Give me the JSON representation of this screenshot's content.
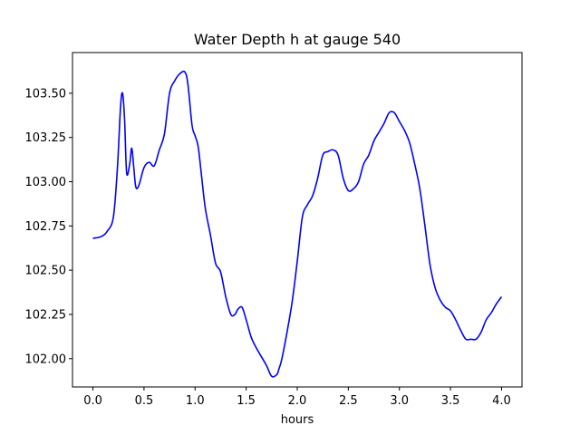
{
  "chart_data": {
    "type": "line",
    "title": "Water Depth h at gauge 540",
    "xlabel": "hours",
    "ylabel": "",
    "xlim": [
      -0.2,
      4.2
    ],
    "ylim": [
      101.84,
      103.73
    ],
    "xticks": [
      0.0,
      0.5,
      1.0,
      1.5,
      2.0,
      2.5,
      3.0,
      3.5,
      4.0
    ],
    "xtick_labels": [
      "0.0",
      "0.5",
      "1.0",
      "1.5",
      "2.0",
      "2.5",
      "3.0",
      "3.5",
      "4.0"
    ],
    "yticks": [
      102.0,
      102.25,
      102.5,
      102.75,
      103.0,
      103.25,
      103.5
    ],
    "ytick_labels": [
      "102.00",
      "102.25",
      "102.50",
      "102.75",
      "103.00",
      "103.25",
      "103.50"
    ],
    "grid": false,
    "series": [
      {
        "color": "#0000ff",
        "x": [
          0.0,
          0.08,
          0.14,
          0.2,
          0.24,
          0.27,
          0.29,
          0.31,
          0.33,
          0.36,
          0.38,
          0.4,
          0.42,
          0.45,
          0.5,
          0.55,
          0.6,
          0.65,
          0.7,
          0.75,
          0.8,
          0.85,
          0.9,
          0.93,
          0.97,
          1.0,
          1.03,
          1.06,
          1.1,
          1.15,
          1.2,
          1.25,
          1.3,
          1.35,
          1.39,
          1.42,
          1.46,
          1.5,
          1.55,
          1.6,
          1.65,
          1.7,
          1.75,
          1.8,
          1.82,
          1.85,
          1.9,
          1.95,
          2.0,
          2.05,
          2.1,
          2.15,
          2.2,
          2.25,
          2.3,
          2.35,
          2.4,
          2.45,
          2.5,
          2.55,
          2.6,
          2.65,
          2.7,
          2.75,
          2.8,
          2.85,
          2.9,
          2.95,
          3.0,
          3.05,
          3.1,
          3.15,
          3.2,
          3.25,
          3.3,
          3.35,
          3.4,
          3.45,
          3.5,
          3.55,
          3.6,
          3.65,
          3.7,
          3.75,
          3.8,
          3.85,
          3.9,
          3.95,
          4.0
        ],
        "y": [
          102.68,
          102.69,
          102.72,
          102.8,
          103.08,
          103.42,
          103.5,
          103.35,
          103.05,
          103.1,
          103.19,
          103.08,
          102.97,
          102.98,
          103.08,
          103.11,
          103.09,
          103.18,
          103.27,
          103.5,
          103.57,
          103.61,
          103.62,
          103.55,
          103.32,
          103.26,
          103.2,
          103.05,
          102.85,
          102.7,
          102.54,
          102.49,
          102.35,
          102.25,
          102.25,
          102.28,
          102.29,
          102.22,
          102.12,
          102.06,
          102.01,
          101.96,
          101.9,
          101.91,
          101.94,
          102.0,
          102.15,
          102.32,
          102.55,
          102.8,
          102.87,
          102.92,
          103.02,
          103.15,
          103.17,
          103.18,
          103.15,
          103.02,
          102.95,
          102.96,
          103.0,
          103.1,
          103.15,
          103.23,
          103.28,
          103.33,
          103.39,
          103.39,
          103.34,
          103.29,
          103.22,
          103.1,
          102.96,
          102.75,
          102.53,
          102.4,
          102.33,
          102.29,
          102.27,
          102.22,
          102.16,
          102.11,
          102.11,
          102.11,
          102.15,
          102.22,
          102.26,
          102.31,
          102.35
        ]
      }
    ]
  }
}
